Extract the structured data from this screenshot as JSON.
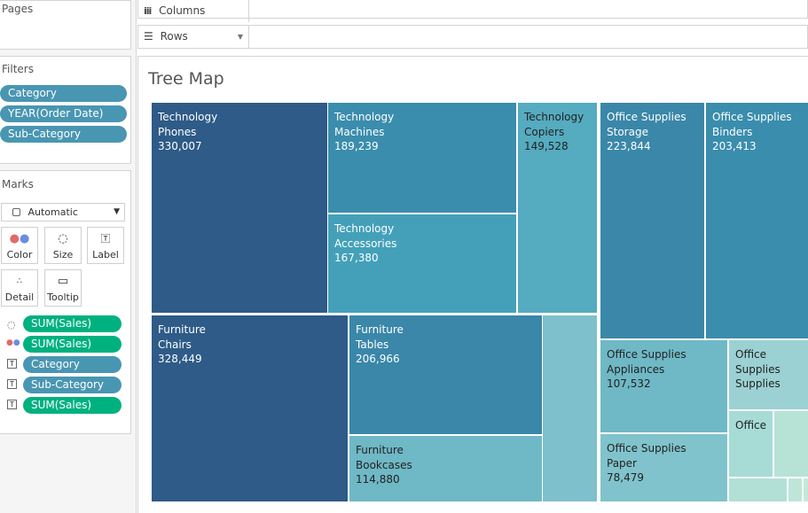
{
  "left_panel": {
    "pages_title": "Pages",
    "filters_title": "Filters",
    "filters": [
      "Category",
      "YEAR(Order Date)",
      "Sub-Category"
    ],
    "marks_title": "Marks",
    "mark_type": "Automatic",
    "mark_buttons": {
      "color": "Color",
      "size": "Size",
      "label": "Label",
      "detail": "Detail",
      "tooltip": "Tooltip"
    },
    "mark_fields": [
      "SUM(Sales)",
      "SUM(Sales)",
      "Category",
      "Sub-Category",
      "SUM(Sales)"
    ]
  },
  "shelves": {
    "columns": "Columns",
    "rows": "Rows"
  },
  "viz": {
    "title": "Tree Map",
    "tiles": [
      {
        "category": "Technology",
        "sub": "Phones",
        "value": "330,007"
      },
      {
        "category": "Technology",
        "sub": "Machines",
        "value": "189,239"
      },
      {
        "category": "Technology",
        "sub": "Copiers",
        "value": "149,528"
      },
      {
        "category": "Technology",
        "sub": "Accessories",
        "value": "167,380"
      },
      {
        "category": "Office Supplies",
        "sub": "Storage",
        "value": "223,844"
      },
      {
        "category": "Office Supplies",
        "sub": "Binders",
        "value": "203,413"
      },
      {
        "category": "Furniture",
        "sub": "Chairs",
        "value": "328,449"
      },
      {
        "category": "Furniture",
        "sub": "Tables",
        "value": "206,966"
      },
      {
        "category": "Furniture",
        "sub": "Bookcases",
        "value": "114,880"
      },
      {
        "category": "Office Supplies",
        "sub": "Appliances",
        "value": "107,532"
      },
      {
        "category": "Office Supplies",
        "sub": "Paper",
        "value": "78,479"
      },
      {
        "line1": "Office",
        "line2": "Supplies",
        "line3": "Supplies"
      },
      {
        "line1": "Office"
      }
    ],
    "colors": {
      "darkest": "#2e5b87",
      "dark": "#3a87a9",
      "mid": "#4aa3bb",
      "light": "#75bdca",
      "lighter": "#a7dbd6",
      "lightest": "#b6e3d6"
    }
  }
}
